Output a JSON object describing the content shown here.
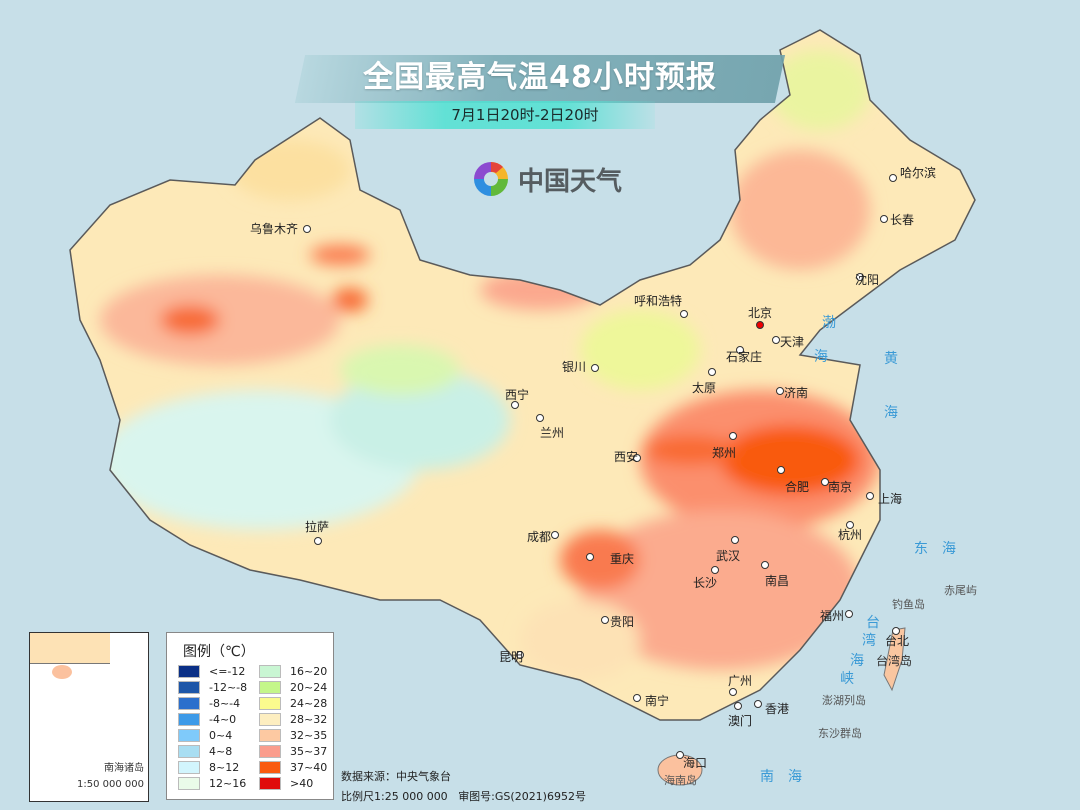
{
  "title": "全国最高气温48小时预报",
  "subtitle": "7月1日20时-2日20时",
  "logo": {
    "text": "中国天气",
    "icon": "china-weather-swirl-logo"
  },
  "legend": {
    "title": "图例（℃）",
    "items": [
      {
        "label": "<=-12",
        "color": "#0a2f86"
      },
      {
        "label": "-12~-8",
        "color": "#1d56a8"
      },
      {
        "label": "-8~-4",
        "color": "#2c6fcc"
      },
      {
        "label": "-4~0",
        "color": "#3d9ae8"
      },
      {
        "label": "0~4",
        "color": "#7fcafa"
      },
      {
        "label": "4~8",
        "color": "#a9def2"
      },
      {
        "label": "8~12",
        "color": "#d2f5fd"
      },
      {
        "label": "12~16",
        "color": "#eafbe9"
      },
      {
        "label": "16~20",
        "color": "#c9f6d3"
      },
      {
        "label": "20~24",
        "color": "#c4f68a"
      },
      {
        "label": "24~28",
        "color": "#fbfb8e"
      },
      {
        "label": "28~32",
        "color": "#fdeec0"
      },
      {
        "label": "32~35",
        "color": "#fdc9a2"
      },
      {
        "label": "35~37",
        "color": "#fa9c8c"
      },
      {
        "label": "37~40",
        "color": "#f95a10"
      },
      {
        "label": ">40",
        "color": "#e00b0b"
      }
    ]
  },
  "cities": [
    "乌鲁木齐",
    "呼和浩特",
    "北京",
    "天津",
    "石家庄",
    "太原",
    "济南",
    "银川",
    "西宁",
    "兰州",
    "西安",
    "郑州",
    "合肥",
    "南京",
    "上海",
    "杭州",
    "武汉",
    "成都",
    "重庆",
    "长沙",
    "南昌",
    "贵阳",
    "昆明",
    "福州",
    "台北",
    "拉萨",
    "南宁",
    "广州",
    "香港",
    "澳门",
    "海口",
    "哈尔滨",
    "长春",
    "沈阳"
  ],
  "islands": [
    "台湾岛",
    "钓鱼岛",
    "赤尾屿",
    "澎湖列岛",
    "东沙群岛",
    "海南岛"
  ],
  "seas": {
    "bohai": [
      "渤",
      "海"
    ],
    "huanghai": [
      "黄",
      "海"
    ],
    "donghai": "东　海",
    "nanhai": "南　海",
    "strait": [
      "台",
      "湾",
      "海",
      "峡"
    ]
  },
  "inset": {
    "name": "南海诸岛",
    "scale": "1:50 000 000"
  },
  "footer": {
    "source": "数据来源：中央气象台",
    "scale": "比例尺1:25 000 000",
    "approval": "审图号:GS(2021)6952号"
  }
}
